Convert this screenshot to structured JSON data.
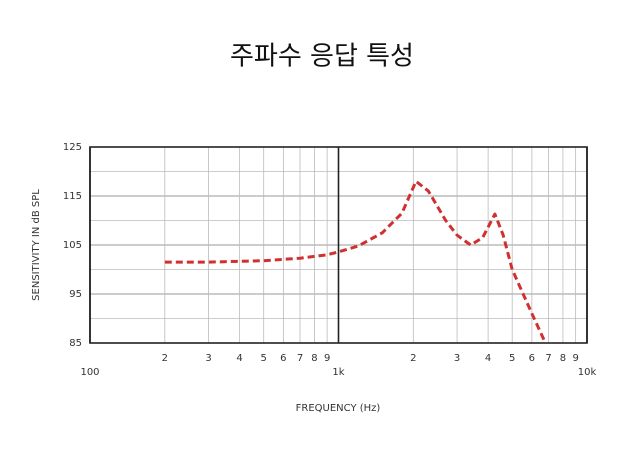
{
  "chart_data": {
    "type": "line",
    "title": "주파수 응답 특성",
    "x_label": "FREQUENCY (Hz)",
    "y_label": "SENSITIVITY IN dB SPL",
    "x_log": true,
    "grid": true,
    "xlim": [
      100,
      10000
    ],
    "xticks": [
      {
        "value": 100,
        "label": "100"
      },
      {
        "value": 200,
        "label": "2"
      },
      {
        "value": 300,
        "label": "3"
      },
      {
        "value": 400,
        "label": "4"
      },
      {
        "value": 500,
        "label": "5"
      },
      {
        "value": 600,
        "label": "6"
      },
      {
        "value": 700,
        "label": "7"
      },
      {
        "value": 800,
        "label": "8"
      },
      {
        "value": 900,
        "label": "9"
      },
      {
        "value": 1000,
        "label": "1k"
      },
      {
        "value": 2000,
        "label": "2"
      },
      {
        "value": 3000,
        "label": "3"
      },
      {
        "value": 4000,
        "label": "4"
      },
      {
        "value": 5000,
        "label": "5"
      },
      {
        "value": 6000,
        "label": "6"
      },
      {
        "value": 7000,
        "label": "7"
      },
      {
        "value": 8000,
        "label": "8"
      },
      {
        "value": 9000,
        "label": "9"
      },
      {
        "value": 10000,
        "label": "10k"
      }
    ],
    "ylim": [
      85,
      125
    ],
    "yticks": [
      85,
      95,
      105,
      115,
      125
    ],
    "y_minor_ticks": [
      90,
      100,
      110,
      120
    ],
    "series": [
      {
        "color": "#d03030",
        "dashed": true,
        "x": [
          200,
          300,
          500,
          700,
          900,
          1000,
          1200,
          1500,
          1800,
          2050,
          2300,
          2700,
          3000,
          3400,
          3800,
          4260,
          4600,
          5000,
          6000,
          6800
        ],
        "values": [
          101.5,
          101.5,
          101.8,
          102.3,
          103,
          103.6,
          104.8,
          107.5,
          111.5,
          118,
          116,
          110,
          107,
          105,
          106.5,
          111.3,
          107,
          100,
          91,
          85
        ]
      }
    ]
  }
}
